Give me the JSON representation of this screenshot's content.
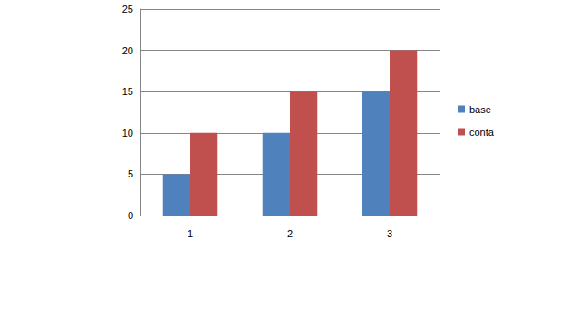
{
  "chart_data": {
    "type": "bar",
    "categories": [
      "1",
      "2",
      "3"
    ],
    "series": [
      {
        "name": "base",
        "color": "#4f81bd",
        "values": [
          5,
          10,
          15
        ]
      },
      {
        "name": "conta",
        "color": "#c0504d",
        "values": [
          10,
          15,
          20
        ]
      }
    ],
    "ylim": [
      0,
      25
    ],
    "yticks": [
      0,
      5,
      10,
      15,
      20,
      25
    ],
    "grid": true,
    "legend": "right"
  }
}
